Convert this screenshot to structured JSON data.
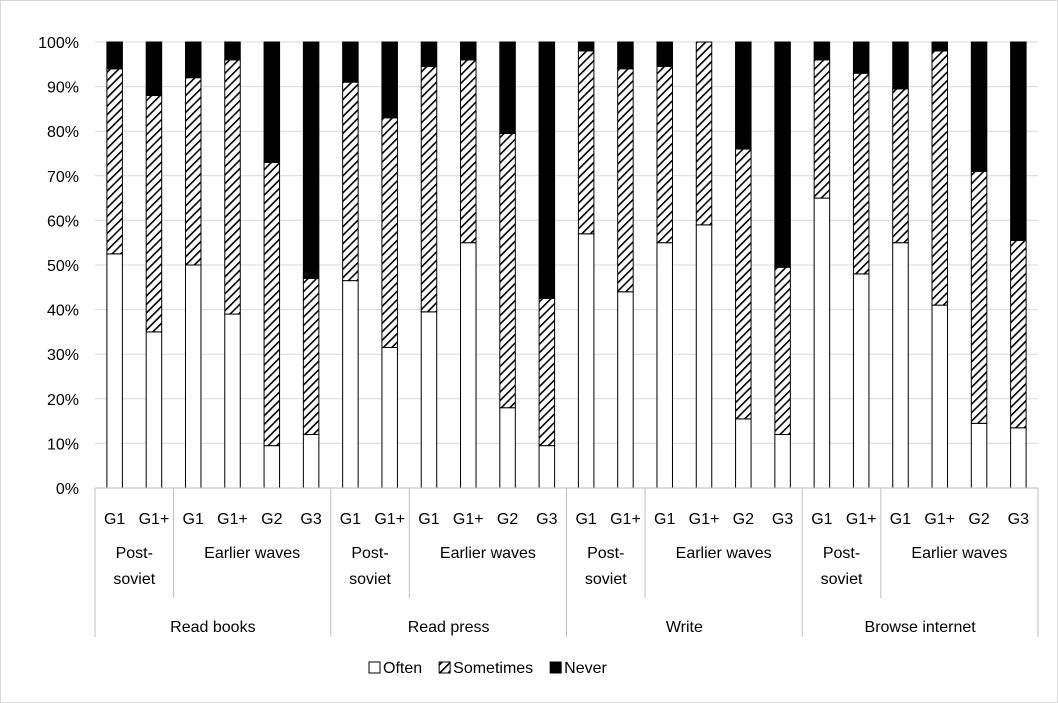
{
  "chart_data": {
    "type": "bar",
    "stacked": true,
    "percent": true,
    "title": "",
    "xlabel": "",
    "ylabel": "",
    "ylim": [
      0,
      100
    ],
    "y_ticks": [
      "0%",
      "10%",
      "20%",
      "30%",
      "40%",
      "50%",
      "60%",
      "70%",
      "80%",
      "90%",
      "100%"
    ],
    "grid": "horizontal",
    "legend_position": "bottom",
    "groups": [
      {
        "label": "Read books",
        "subgroups": [
          {
            "label_lines": [
              "Post-",
              "soviet"
            ],
            "bars": [
              "G1",
              "G1+"
            ]
          },
          {
            "label_lines": [
              "Earlier waves"
            ],
            "bars": [
              "G1",
              "G1+",
              "G2",
              "G3"
            ]
          }
        ]
      },
      {
        "label": "Read press",
        "subgroups": [
          {
            "label_lines": [
              "Post-",
              "soviet"
            ],
            "bars": [
              "G1",
              "G1+"
            ]
          },
          {
            "label_lines": [
              "Earlier waves"
            ],
            "bars": [
              "G1",
              "G1+",
              "G2",
              "G3"
            ]
          }
        ]
      },
      {
        "label": "Write",
        "subgroups": [
          {
            "label_lines": [
              "Post-",
              "soviet"
            ],
            "bars": [
              "G1",
              "G1+"
            ]
          },
          {
            "label_lines": [
              "Earlier waves"
            ],
            "bars": [
              "G1",
              "G1+",
              "G2",
              "G3"
            ]
          }
        ]
      },
      {
        "label": "Browse internet",
        "subgroups": [
          {
            "label_lines": [
              "Post-",
              "soviet"
            ],
            "bars": [
              "G1",
              "G1+"
            ]
          },
          {
            "label_lines": [
              "Earlier waves"
            ],
            "bars": [
              "G1",
              "G1+",
              "G2",
              "G3"
            ]
          }
        ]
      }
    ],
    "series": [
      {
        "name": "Often",
        "pattern": "white",
        "values": [
          52.5,
          35,
          50,
          39,
          9.5,
          12,
          46.5,
          31.5,
          39.5,
          55,
          18,
          9.5,
          57,
          44,
          55,
          59,
          15.5,
          12,
          65,
          48,
          55,
          41,
          14.5,
          13.5
        ]
      },
      {
        "name": "Sometimes",
        "pattern": "hatched",
        "values": [
          41.5,
          53,
          42,
          57,
          63.5,
          35,
          44.5,
          51.5,
          55,
          41,
          61.5,
          33,
          41,
          50,
          39.5,
          41,
          60.5,
          37.5,
          31,
          45,
          34.5,
          57,
          56.5,
          42
        ]
      },
      {
        "name": "Never",
        "pattern": "black",
        "values": [
          6,
          12,
          8,
          4,
          27,
          53,
          9,
          17,
          5.5,
          4,
          20.5,
          57.5,
          2,
          6,
          5.5,
          0,
          24,
          50.5,
          4,
          7,
          10.5,
          2,
          29,
          44.5
        ]
      }
    ],
    "colors": {
      "often": "#ffffff",
      "never": "#000000",
      "hatch": "#000000",
      "grid": "#d9d9d9",
      "axis": "#bfbfbf"
    }
  }
}
